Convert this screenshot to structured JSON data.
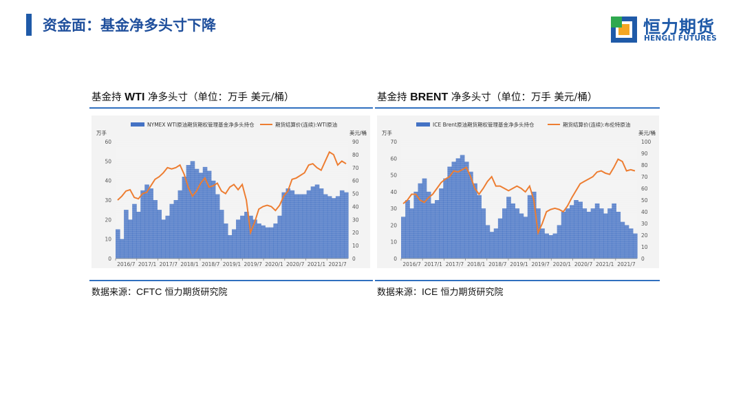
{
  "header": {
    "title": "资金面：基金净多头寸下降",
    "logo_cn": "恒力期货",
    "logo_en": "HENGLI FUTURES"
  },
  "panels": [
    {
      "title_prefix": "基金持 ",
      "title_latin": "WTI",
      "title_suffix": " 净多头寸（单位：万手 美元/桶）",
      "source_prefix": "数据来源：",
      "source_latin": "CFTC",
      "source_suffix": " 恒力期货研究院"
    },
    {
      "title_prefix": "基金持 ",
      "title_latin": "BRENT",
      "title_suffix": " 净多头寸（单位：万手 美元/桶）",
      "source_prefix": "数据来源：",
      "source_latin": "ICE",
      "source_suffix": " 恒力期货研究院"
    }
  ],
  "colors": {
    "bar": "#4472c4",
    "line": "#ed7d31",
    "accent": "#1f5aa8"
  },
  "chart_data": [
    {
      "type": "bar",
      "left_unit": "万手",
      "right_unit": "美元/桶",
      "ylim": [
        0,
        60
      ],
      "yticks": [
        0,
        10,
        20,
        30,
        40,
        50,
        60
      ],
      "y2lim": [
        0,
        90
      ],
      "y2ticks": [
        0,
        10,
        20,
        30,
        40,
        50,
        60,
        70,
        80,
        90
      ],
      "xticks": [
        "2016/7",
        "2017/1",
        "2017/7",
        "2018/1",
        "2018/7",
        "2019/1",
        "2019/7",
        "2020/1",
        "2020/7",
        "2021/1",
        "2021/7"
      ],
      "x_range": [
        "2016/7",
        "2021/12"
      ],
      "grid": false,
      "legend_position": "top",
      "series": [
        {
          "name": "NYMEX WTI原油期货期权管理基金净多头持仓",
          "kind": "bar",
          "axis": "left",
          "points": [
            [
              0,
              15
            ],
            [
              1,
              10
            ],
            [
              2,
              25
            ],
            [
              3,
              20
            ],
            [
              4,
              28
            ],
            [
              5,
              24
            ],
            [
              6,
              35
            ],
            [
              7,
              38
            ],
            [
              8,
              36
            ],
            [
              9,
              30
            ],
            [
              10,
              25
            ],
            [
              11,
              20
            ],
            [
              12,
              22
            ],
            [
              13,
              28
            ],
            [
              14,
              30
            ],
            [
              15,
              35
            ],
            [
              16,
              42
            ],
            [
              17,
              48
            ],
            [
              18,
              50
            ],
            [
              19,
              46
            ],
            [
              20,
              44
            ],
            [
              21,
              47
            ],
            [
              22,
              45
            ],
            [
              23,
              40
            ],
            [
              24,
              33
            ],
            [
              25,
              25
            ],
            [
              26,
              18
            ],
            [
              27,
              12
            ],
            [
              28,
              15
            ],
            [
              29,
              20
            ],
            [
              30,
              22
            ],
            [
              31,
              24
            ],
            [
              32,
              22
            ],
            [
              33,
              20
            ],
            [
              34,
              18
            ],
            [
              35,
              17
            ],
            [
              36,
              16
            ],
            [
              37,
              16
            ],
            [
              38,
              18
            ],
            [
              39,
              22
            ],
            [
              40,
              34
            ],
            [
              41,
              36
            ],
            [
              42,
              35
            ],
            [
              43,
              33
            ],
            [
              44,
              33
            ],
            [
              45,
              33
            ],
            [
              46,
              35
            ],
            [
              47,
              37
            ],
            [
              48,
              38
            ],
            [
              49,
              36
            ],
            [
              50,
              33
            ],
            [
              51,
              32
            ],
            [
              52,
              31
            ],
            [
              53,
              32
            ],
            [
              54,
              35
            ],
            [
              55,
              34
            ]
          ]
        },
        {
          "name": "期货结算价(连续):WTI原油",
          "kind": "line",
          "axis": "right",
          "points": [
            [
              0,
              45
            ],
            [
              1,
              48
            ],
            [
              2,
              52
            ],
            [
              3,
              53
            ],
            [
              4,
              47
            ],
            [
              5,
              46
            ],
            [
              6,
              50
            ],
            [
              7,
              51
            ],
            [
              8,
              56
            ],
            [
              9,
              61
            ],
            [
              10,
              63
            ],
            [
              11,
              66
            ],
            [
              12,
              70
            ],
            [
              13,
              69
            ],
            [
              14,
              70
            ],
            [
              15,
              72
            ],
            [
              16,
              65
            ],
            [
              17,
              55
            ],
            [
              18,
              48
            ],
            [
              19,
              52
            ],
            [
              20,
              58
            ],
            [
              21,
              62
            ],
            [
              22,
              55
            ],
            [
              23,
              56
            ],
            [
              24,
              58
            ],
            [
              25,
              52
            ],
            [
              26,
              50
            ],
            [
              27,
              55
            ],
            [
              28,
              57
            ],
            [
              29,
              53
            ],
            [
              30,
              57
            ],
            [
              31,
              45
            ],
            [
              32,
              20
            ],
            [
              33,
              28
            ],
            [
              34,
              38
            ],
            [
              35,
              40
            ],
            [
              36,
              41
            ],
            [
              37,
              40
            ],
            [
              38,
              37
            ],
            [
              39,
              41
            ],
            [
              40,
              48
            ],
            [
              41,
              52
            ],
            [
              42,
              61
            ],
            [
              43,
              62
            ],
            [
              44,
              64
            ],
            [
              45,
              66
            ],
            [
              46,
              72
            ],
            [
              47,
              73
            ],
            [
              48,
              70
            ],
            [
              49,
              68
            ],
            [
              50,
              75
            ],
            [
              51,
              82
            ],
            [
              52,
              80
            ],
            [
              53,
              72
            ],
            [
              54,
              75
            ],
            [
              55,
              73
            ]
          ]
        }
      ]
    },
    {
      "type": "bar",
      "left_unit": "万手",
      "right_unit": "美元/桶",
      "ylim": [
        0,
        70
      ],
      "yticks": [
        0,
        10,
        20,
        30,
        40,
        50,
        60,
        70
      ],
      "y2lim": [
        0,
        100
      ],
      "y2ticks": [
        0,
        10,
        20,
        30,
        40,
        50,
        60,
        70,
        80,
        90,
        100
      ],
      "xticks": [
        "2016/7",
        "2017/1",
        "2017/7",
        "2018/1",
        "2018/7",
        "2019/1",
        "2019/7",
        "2020/1",
        "2020/7",
        "2021/1",
        "2021/7"
      ],
      "x_range": [
        "2016/7",
        "2021/12"
      ],
      "grid": false,
      "legend_position": "top",
      "series": [
        {
          "name": "ICE Brent原油期货期权管理基金净多头持仓",
          "kind": "bar",
          "axis": "left",
          "points": [
            [
              0,
              25
            ],
            [
              1,
              35
            ],
            [
              2,
              30
            ],
            [
              3,
              40
            ],
            [
              4,
              45
            ],
            [
              5,
              48
            ],
            [
              6,
              40
            ],
            [
              7,
              33
            ],
            [
              8,
              35
            ],
            [
              9,
              42
            ],
            [
              10,
              48
            ],
            [
              11,
              55
            ],
            [
              12,
              58
            ],
            [
              13,
              60
            ],
            [
              14,
              62
            ],
            [
              15,
              58
            ],
            [
              16,
              52
            ],
            [
              17,
              45
            ],
            [
              18,
              38
            ],
            [
              19,
              30
            ],
            [
              20,
              20
            ],
            [
              21,
              16
            ],
            [
              22,
              18
            ],
            [
              23,
              24
            ],
            [
              24,
              30
            ],
            [
              25,
              37
            ],
            [
              26,
              33
            ],
            [
              27,
              30
            ],
            [
              28,
              27
            ],
            [
              29,
              25
            ],
            [
              30,
              38
            ],
            [
              31,
              40
            ],
            [
              32,
              30
            ],
            [
              33,
              18
            ],
            [
              34,
              15
            ],
            [
              35,
              14
            ],
            [
              36,
              15
            ],
            [
              37,
              20
            ],
            [
              38,
              28
            ],
            [
              39,
              30
            ],
            [
              40,
              32
            ],
            [
              41,
              35
            ],
            [
              42,
              34
            ],
            [
              43,
              30
            ],
            [
              44,
              28
            ],
            [
              45,
              30
            ],
            [
              46,
              33
            ],
            [
              47,
              30
            ],
            [
              48,
              27
            ],
            [
              49,
              30
            ],
            [
              50,
              33
            ],
            [
              51,
              28
            ],
            [
              52,
              22
            ],
            [
              53,
              20
            ],
            [
              54,
              18
            ],
            [
              55,
              15
            ]
          ]
        },
        {
          "name": "期货结算价(连续):布伦特原油",
          "kind": "line",
          "axis": "right",
          "points": [
            [
              0,
              47
            ],
            [
              1,
              50
            ],
            [
              2,
              55
            ],
            [
              3,
              55
            ],
            [
              4,
              50
            ],
            [
              5,
              48
            ],
            [
              6,
              52
            ],
            [
              7,
              55
            ],
            [
              8,
              60
            ],
            [
              9,
              65
            ],
            [
              10,
              68
            ],
            [
              11,
              70
            ],
            [
              12,
              75
            ],
            [
              13,
              74
            ],
            [
              14,
              76
            ],
            [
              15,
              78
            ],
            [
              16,
              70
            ],
            [
              17,
              60
            ],
            [
              18,
              55
            ],
            [
              19,
              60
            ],
            [
              20,
              66
            ],
            [
              21,
              70
            ],
            [
              22,
              62
            ],
            [
              23,
              62
            ],
            [
              24,
              60
            ],
            [
              25,
              58
            ],
            [
              26,
              60
            ],
            [
              27,
              62
            ],
            [
              28,
              60
            ],
            [
              29,
              57
            ],
            [
              30,
              62
            ],
            [
              31,
              50
            ],
            [
              32,
              22
            ],
            [
              33,
              30
            ],
            [
              34,
              40
            ],
            [
              35,
              42
            ],
            [
              36,
              43
            ],
            [
              37,
              42
            ],
            [
              38,
              40
            ],
            [
              39,
              45
            ],
            [
              40,
              52
            ],
            [
              41,
              58
            ],
            [
              42,
              64
            ],
            [
              43,
              66
            ],
            [
              44,
              68
            ],
            [
              45,
              70
            ],
            [
              46,
              74
            ],
            [
              47,
              75
            ],
            [
              48,
              73
            ],
            [
              49,
              72
            ],
            [
              50,
              78
            ],
            [
              51,
              85
            ],
            [
              52,
              83
            ],
            [
              53,
              75
            ],
            [
              54,
              76
            ],
            [
              55,
              75
            ]
          ]
        }
      ]
    }
  ]
}
